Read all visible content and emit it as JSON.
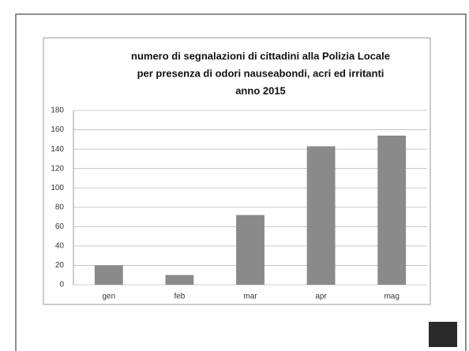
{
  "chart_data": {
    "type": "bar",
    "title": [
      "numero di segnalazioni di cittadini alla Polizia Locale",
      "per presenza di odori nauseabondi, acri ed irritanti",
      "anno 2015"
    ],
    "categories": [
      "gen",
      "feb",
      "mar",
      "apr",
      "mag"
    ],
    "values": [
      20,
      10,
      72,
      143,
      154
    ],
    "color": "#8a8a8a",
    "ylim": [
      0,
      180
    ],
    "yticks": [
      0,
      20,
      40,
      60,
      80,
      100,
      120,
      140,
      160,
      180
    ],
    "grid": true
  }
}
